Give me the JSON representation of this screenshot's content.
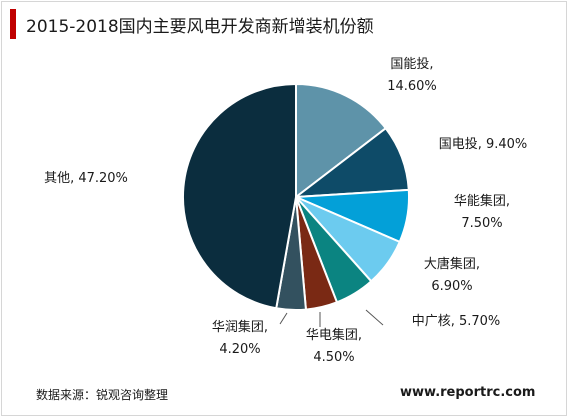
{
  "title": "2015-2018国内主要风电开发商新增装机份额",
  "source": "数据来源：锐观咨询整理",
  "website": "www.reportrc.com",
  "chart_data": {
    "type": "pie",
    "title": "2015-2018国内主要风电开发商新增装机份额",
    "unit": "%",
    "slices": [
      {
        "name": "国能投",
        "value": 14.6,
        "label_lines": [
          "国能投,",
          "14.60%"
        ],
        "color": "#5e93a9"
      },
      {
        "name": "国电投",
        "value": 9.4,
        "label_lines": [
          "国电投, 9.40%"
        ],
        "color": "#0e4b68"
      },
      {
        "name": "华能集团",
        "value": 7.5,
        "label_lines": [
          "华能集团,",
          "7.50%"
        ],
        "color": "#03a0d8"
      },
      {
        "name": "大唐集团",
        "value": 6.9,
        "label_lines": [
          "大唐集团,",
          "6.90%"
        ],
        "color": "#6ccbef"
      },
      {
        "name": "中广核",
        "value": 5.7,
        "label_lines": [
          "中广核, 5.70%"
        ],
        "color": "#0b8481"
      },
      {
        "name": "华电集团",
        "value": 4.5,
        "label_lines": [
          "华电集团,",
          "4.50%"
        ],
        "color": "#7a2914"
      },
      {
        "name": "华润集团",
        "value": 4.2,
        "label_lines": [
          "华润集团,",
          "4.20%"
        ],
        "color": "#33515f"
      },
      {
        "name": "其他",
        "value": 47.2,
        "label_lines": [
          "其他, 47.20%"
        ],
        "color": "#0b2d3e"
      }
    ]
  }
}
